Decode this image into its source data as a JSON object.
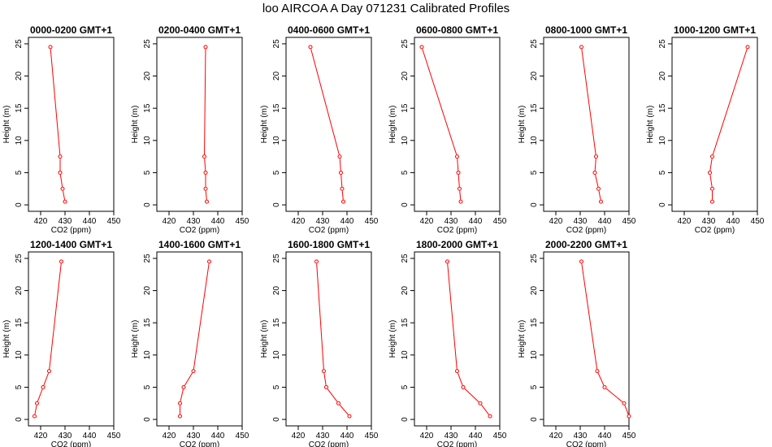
{
  "title": "loo AIRCOA A  Day 071231  Calibrated Profiles",
  "chart_data": [
    {
      "type": "line",
      "title": "0000-0200 GMT+1",
      "xlabel": "CO2 (ppm)",
      "ylabel": "Height (m)",
      "xlim": [
        415,
        450
      ],
      "ylim": [
        -1,
        26
      ],
      "xticks": [
        420,
        430,
        440,
        450
      ],
      "yticks": [
        0,
        5,
        10,
        15,
        20,
        25
      ],
      "series": [
        {
          "x": [
            430,
            429,
            428,
            428,
            424
          ],
          "y": [
            0.5,
            2.5,
            5,
            7.5,
            24.5
          ]
        }
      ]
    },
    {
      "type": "line",
      "title": "0200-0400 GMT+1",
      "xlabel": "CO2 (ppm)",
      "ylabel": "Height (m)",
      "xlim": [
        415,
        450
      ],
      "ylim": [
        -1,
        26
      ],
      "xticks": [
        420,
        430,
        440,
        450
      ],
      "yticks": [
        0,
        5,
        10,
        15,
        20,
        25
      ],
      "series": [
        {
          "x": [
            435.5,
            435,
            435,
            434.5,
            435
          ],
          "y": [
            0.5,
            2.5,
            5,
            7.5,
            24.5
          ]
        }
      ]
    },
    {
      "type": "line",
      "title": "0400-0600 GMT+1",
      "xlabel": "CO2 (ppm)",
      "ylabel": "Height (m)",
      "xlim": [
        415,
        450
      ],
      "ylim": [
        -1,
        26
      ],
      "xticks": [
        420,
        430,
        440,
        450
      ],
      "yticks": [
        0,
        5,
        10,
        15,
        20,
        25
      ],
      "series": [
        {
          "x": [
            438.5,
            438,
            437.5,
            437,
            425
          ],
          "y": [
            0.5,
            2.5,
            5,
            7.5,
            24.5
          ]
        }
      ]
    },
    {
      "type": "line",
      "title": "0600-0800 GMT+1",
      "xlabel": "CO2 (ppm)",
      "ylabel": "Height (m)",
      "xlim": [
        415,
        450
      ],
      "ylim": [
        -1,
        26
      ],
      "xticks": [
        420,
        430,
        440,
        450
      ],
      "yticks": [
        0,
        5,
        10,
        15,
        20,
        25
      ],
      "series": [
        {
          "x": [
            434,
            433.5,
            433,
            432.5,
            418
          ],
          "y": [
            0.5,
            2.5,
            5,
            7.5,
            24.5
          ]
        }
      ]
    },
    {
      "type": "line",
      "title": "0800-1000 GMT+1",
      "xlabel": "CO2 (ppm)",
      "ylabel": "Height (m)",
      "xlim": [
        415,
        450
      ],
      "ylim": [
        -1,
        26
      ],
      "xticks": [
        420,
        430,
        440,
        450
      ],
      "yticks": [
        0,
        5,
        10,
        15,
        20,
        25
      ],
      "series": [
        {
          "x": [
            438.5,
            437.5,
            436,
            436.5,
            430.5
          ],
          "y": [
            0.5,
            2.5,
            5,
            7.5,
            24.5
          ]
        }
      ]
    },
    {
      "type": "line",
      "title": "1000-1200 GMT+1",
      "xlabel": "CO2 (ppm)",
      "ylabel": "Height (m)",
      "xlim": [
        415,
        450
      ],
      "ylim": [
        -1,
        26
      ],
      "xticks": [
        420,
        430,
        440,
        450
      ],
      "yticks": [
        0,
        5,
        10,
        15,
        20,
        25
      ],
      "series": [
        {
          "x": [
            431.5,
            431.5,
            430.5,
            431.5,
            446
          ],
          "y": [
            0.5,
            2.5,
            5,
            7.5,
            24.5
          ]
        }
      ]
    },
    {
      "type": "line",
      "title": "1200-1400 GMT+1",
      "xlabel": "CO2 (ppm)",
      "ylabel": "Height (m)",
      "xlim": [
        415,
        450
      ],
      "ylim": [
        -1,
        26
      ],
      "xticks": [
        420,
        430,
        440,
        450
      ],
      "yticks": [
        0,
        5,
        10,
        15,
        20,
        25
      ],
      "series": [
        {
          "x": [
            417.5,
            418.5,
            421,
            423.5,
            428.5
          ],
          "y": [
            0.5,
            2.5,
            5,
            7.5,
            24.5
          ]
        }
      ]
    },
    {
      "type": "line",
      "title": "1400-1600 GMT+1",
      "xlabel": "CO2 (ppm)",
      "ylabel": "Height (m)",
      "xlim": [
        415,
        450
      ],
      "ylim": [
        -1,
        26
      ],
      "xticks": [
        420,
        430,
        440,
        450
      ],
      "yticks": [
        0,
        5,
        10,
        15,
        20,
        25
      ],
      "series": [
        {
          "x": [
            424.5,
            424.5,
            426,
            430,
            436.5
          ],
          "y": [
            0.5,
            2.5,
            5,
            7.5,
            24.5
          ]
        }
      ]
    },
    {
      "type": "line",
      "title": "1600-1800 GMT+1",
      "xlabel": "CO2 (ppm)",
      "ylabel": "Height (m)",
      "xlim": [
        415,
        450
      ],
      "ylim": [
        -1,
        26
      ],
      "xticks": [
        420,
        430,
        440,
        450
      ],
      "yticks": [
        0,
        5,
        10,
        15,
        20,
        25
      ],
      "series": [
        {
          "x": [
            441,
            436.5,
            431.5,
            430.5,
            427.5
          ],
          "y": [
            0.5,
            2.5,
            5,
            7.5,
            24.5
          ]
        }
      ]
    },
    {
      "type": "line",
      "title": "1800-2000 GMT+1",
      "xlabel": "CO2 (ppm)",
      "ylabel": "Height (m)",
      "xlim": [
        415,
        450
      ],
      "ylim": [
        -1,
        26
      ],
      "xticks": [
        420,
        430,
        440,
        450
      ],
      "yticks": [
        0,
        5,
        10,
        15,
        20,
        25
      ],
      "series": [
        {
          "x": [
            446,
            442,
            435,
            432.5,
            428.5
          ],
          "y": [
            0.5,
            2.5,
            5,
            7.5,
            24.5
          ]
        }
      ]
    },
    {
      "type": "line",
      "title": "2000-2200 GMT+1",
      "xlabel": "CO2 (ppm)",
      "ylabel": "Height (m)",
      "xlim": [
        415,
        450
      ],
      "ylim": [
        -1,
        26
      ],
      "xticks": [
        420,
        430,
        440,
        450
      ],
      "yticks": [
        0,
        5,
        10,
        15,
        20,
        25
      ],
      "series": [
        {
          "x": [
            450,
            448,
            440,
            437,
            430.5
          ],
          "y": [
            0.5,
            2.5,
            5,
            7.5,
            24.5
          ]
        }
      ]
    }
  ],
  "colors": {
    "line": "#ff0000",
    "point": "#ff0000",
    "axis": "#000000"
  }
}
